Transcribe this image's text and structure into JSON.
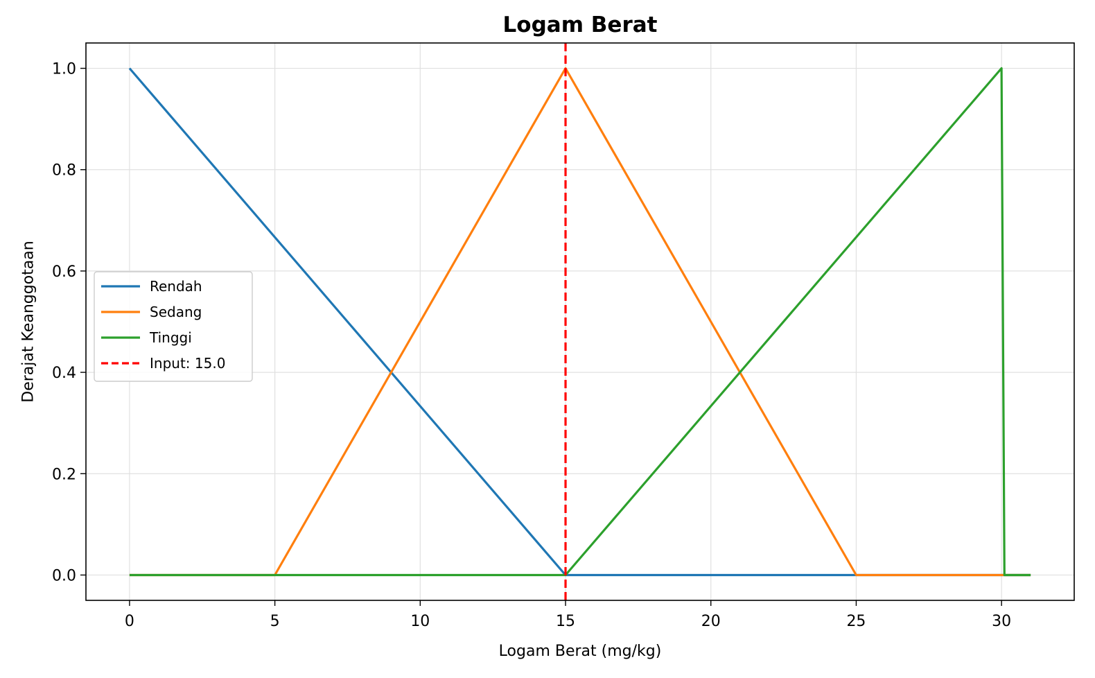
{
  "chart_data": {
    "type": "line",
    "title": "Logam Berat",
    "xlabel": "Logam Berat (mg/kg)",
    "ylabel": "Derajat Keanggotaan",
    "xlim": [
      -1.5,
      32.5
    ],
    "ylim": [
      -0.05,
      1.05
    ],
    "xticks": [
      0,
      5,
      10,
      15,
      20,
      25,
      30
    ],
    "yticks": [
      0.0,
      0.2,
      0.4,
      0.6,
      0.8,
      1.0
    ],
    "xtick_labels": [
      "0",
      "5",
      "10",
      "15",
      "20",
      "25",
      "30"
    ],
    "ytick_labels": [
      "0.0",
      "0.2",
      "0.4",
      "0.6",
      "0.8",
      "1.0"
    ],
    "grid": true,
    "legend_position": "center-left",
    "series": [
      {
        "name": "Rendah",
        "color": "#1f77b4",
        "style": "solid",
        "x": [
          0,
          15,
          31
        ],
        "y": [
          1,
          0,
          0
        ]
      },
      {
        "name": "Sedang",
        "color": "#ff7f0e",
        "style": "solid",
        "x": [
          0,
          5,
          15,
          25,
          31
        ],
        "y": [
          0,
          0,
          1,
          0,
          0
        ]
      },
      {
        "name": "Tinggi",
        "color": "#2ca02c",
        "style": "solid",
        "x": [
          0,
          15,
          30,
          30.1,
          31
        ],
        "y": [
          0,
          0,
          1,
          0,
          0
        ]
      }
    ],
    "vline": {
      "name": "Input: 15.0",
      "x": 15.0,
      "color": "#ff0000",
      "style": "dashed"
    }
  }
}
